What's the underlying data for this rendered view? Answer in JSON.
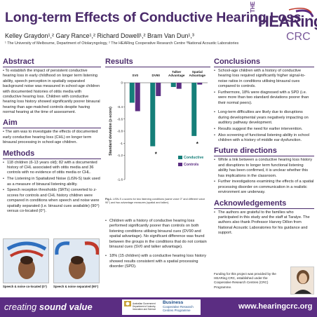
{
  "header": {
    "title": "Long-term Effects of Conductive Hearing Loss",
    "authors": "Kelley Graydon¹,² Gary Rance¹,² Richard Dowell¹,² Bram Van Dun¹,³",
    "affiliations": "¹ The University of Melbourne, Department of Otolaryngology, ² The HEARing Cooperative Research Centre ³National Acoustic Laboratories",
    "logo": {
      "the": "THE",
      "main": "HEARing",
      "crc": "CRC"
    }
  },
  "abstract": {
    "heading": "Abstract",
    "text": "• To establish the impact of persistent conductive hearing loss in early childhood on longer term listening ability, speech perception in spatially separated background noise was measured in school-age children with documented histories of otitis media with conductive hearing loss. Children with conductive hearing loss history showed significantly poorer binaural hearing than age-matched controls despite having normal hearing at the time of assessment."
  },
  "aim": {
    "heading": "Aim",
    "text": "• The aim was to investigate the effects of documented early conductive hearing loss (CHL) on longer term binaural processing in school-age children."
  },
  "methods": {
    "heading": "Methods",
    "items": [
      "118 children (6-13 years old); 82 with a documented history of CHL associated with otitis media and 36 controls with no evidence of otitis media or CHL.",
      "The Listening in Spatialized Noise (LiSN-S) task used as a measure of binaural listening ability.",
      "Speech reception thresholds (SRTs) converted to z-scores for controls and CHL history children were compared in conditions when speech and noise were spatially separated (i.e. binaural cues available) (90°) versus co-located (0°)."
    ],
    "photo_captions": [
      "Speech & noise co-located (0°)",
      "Speech & noise separated (90°)"
    ]
  },
  "results": {
    "heading": "Results",
    "caption_label": "Fig.1.",
    "caption": "LiSN-S z-scores for two listening conditions (same voice 0° and different voice 90°) and two advantage measures (spatial and talker).",
    "items": [
      "Children with a history of conductive hearing loss performed significantly poorer than controls on both listening conditions utilising binaural cues (DV90 and spatial advantage). No significant difference was found between the groups in the conditions that do not contain binaural cues (SV0 and talker advantage).",
      "18% (15 children) with a conductive hearing loss history showed results consistent with a spatial processing disorder (SPD)."
    ]
  },
  "chart_data": {
    "type": "bar",
    "categories": [
      "SV0",
      "DV90",
      "Talker\nAdvantage",
      "Spatial\nAdvantage"
    ],
    "series": [
      {
        "name": "Conductive",
        "values": [
          -0.33,
          -1.05,
          -0.07,
          -0.88
        ],
        "color": "#157f79"
      },
      {
        "name": "Controls",
        "values": [
          -0.47,
          -0.22,
          -0.1,
          -0.03
        ],
        "color": "#5b2d82"
      }
    ],
    "significance": [
      "",
      "*",
      "",
      "*"
    ],
    "ylabel": "Standard deviation (z-score)",
    "ylim": [
      -1.6,
      0
    ],
    "yticks": [
      "0",
      "-0.4",
      "-0.6",
      "-0.8",
      "-1",
      "-1.2",
      "-1.6"
    ],
    "legend_position": "bottom-right",
    "grid": false
  },
  "conclusions": {
    "heading": "Conclusions",
    "items": [
      "School-age children with a history of conductive hearing loss required significantly higher signal-to-noise ratios in conditions utilising binaural cues compared to controls.",
      "Furthermore, 18% were diagnosed with a SPD (i.e. were more than two standard deviations poorer than their normal peers).",
      "Long-term difficulties are likely due to disruptions during developmental years negatively impacting on auditory pathway development.",
      "Results suggest the need for earlier intervention.",
      "Also screening of functional listening ability in school children with a history of middle ear dysfunction."
    ]
  },
  "future": {
    "heading": "Future directions",
    "items": [
      "While a link between a conductive hearing loss history and disruptions to longer term functional listening ability has been confirmed, it is unclear whether this has implications in the classroom.",
      "Further investigations examining the effects of a spatial processing disorder on communication in a realistic environment are underway."
    ]
  },
  "acknowledgements": {
    "heading": "Acknowledgements",
    "items": [
      "The authors are grateful to the families who participated in this study and the staff at Taralye. The authors also thank Professor Harvey Dillon from National Acoustic Laboratories for his guidance and support."
    ]
  },
  "funding": "Funding for this project was provided by the HEARing CRC, established under the Cooperative Research Centres (CRC) Programme.",
  "footer": {
    "slogan_a": "creating ",
    "slogan_b": "sound value",
    "gov_line1": "Australian Government",
    "gov_line2": "Department of Industry,",
    "gov_line3": "Innovation and Science",
    "bcrc_line1": "Business",
    "bcrc_line2": "Cooperative Research",
    "bcrc_line3": "Centres Programme",
    "url": "www.hearingcrc.org"
  },
  "colors": {
    "accent": "#5b2d82",
    "heading": "#4a2a6a",
    "conductive": "#157f79",
    "controls": "#5b2d82"
  }
}
